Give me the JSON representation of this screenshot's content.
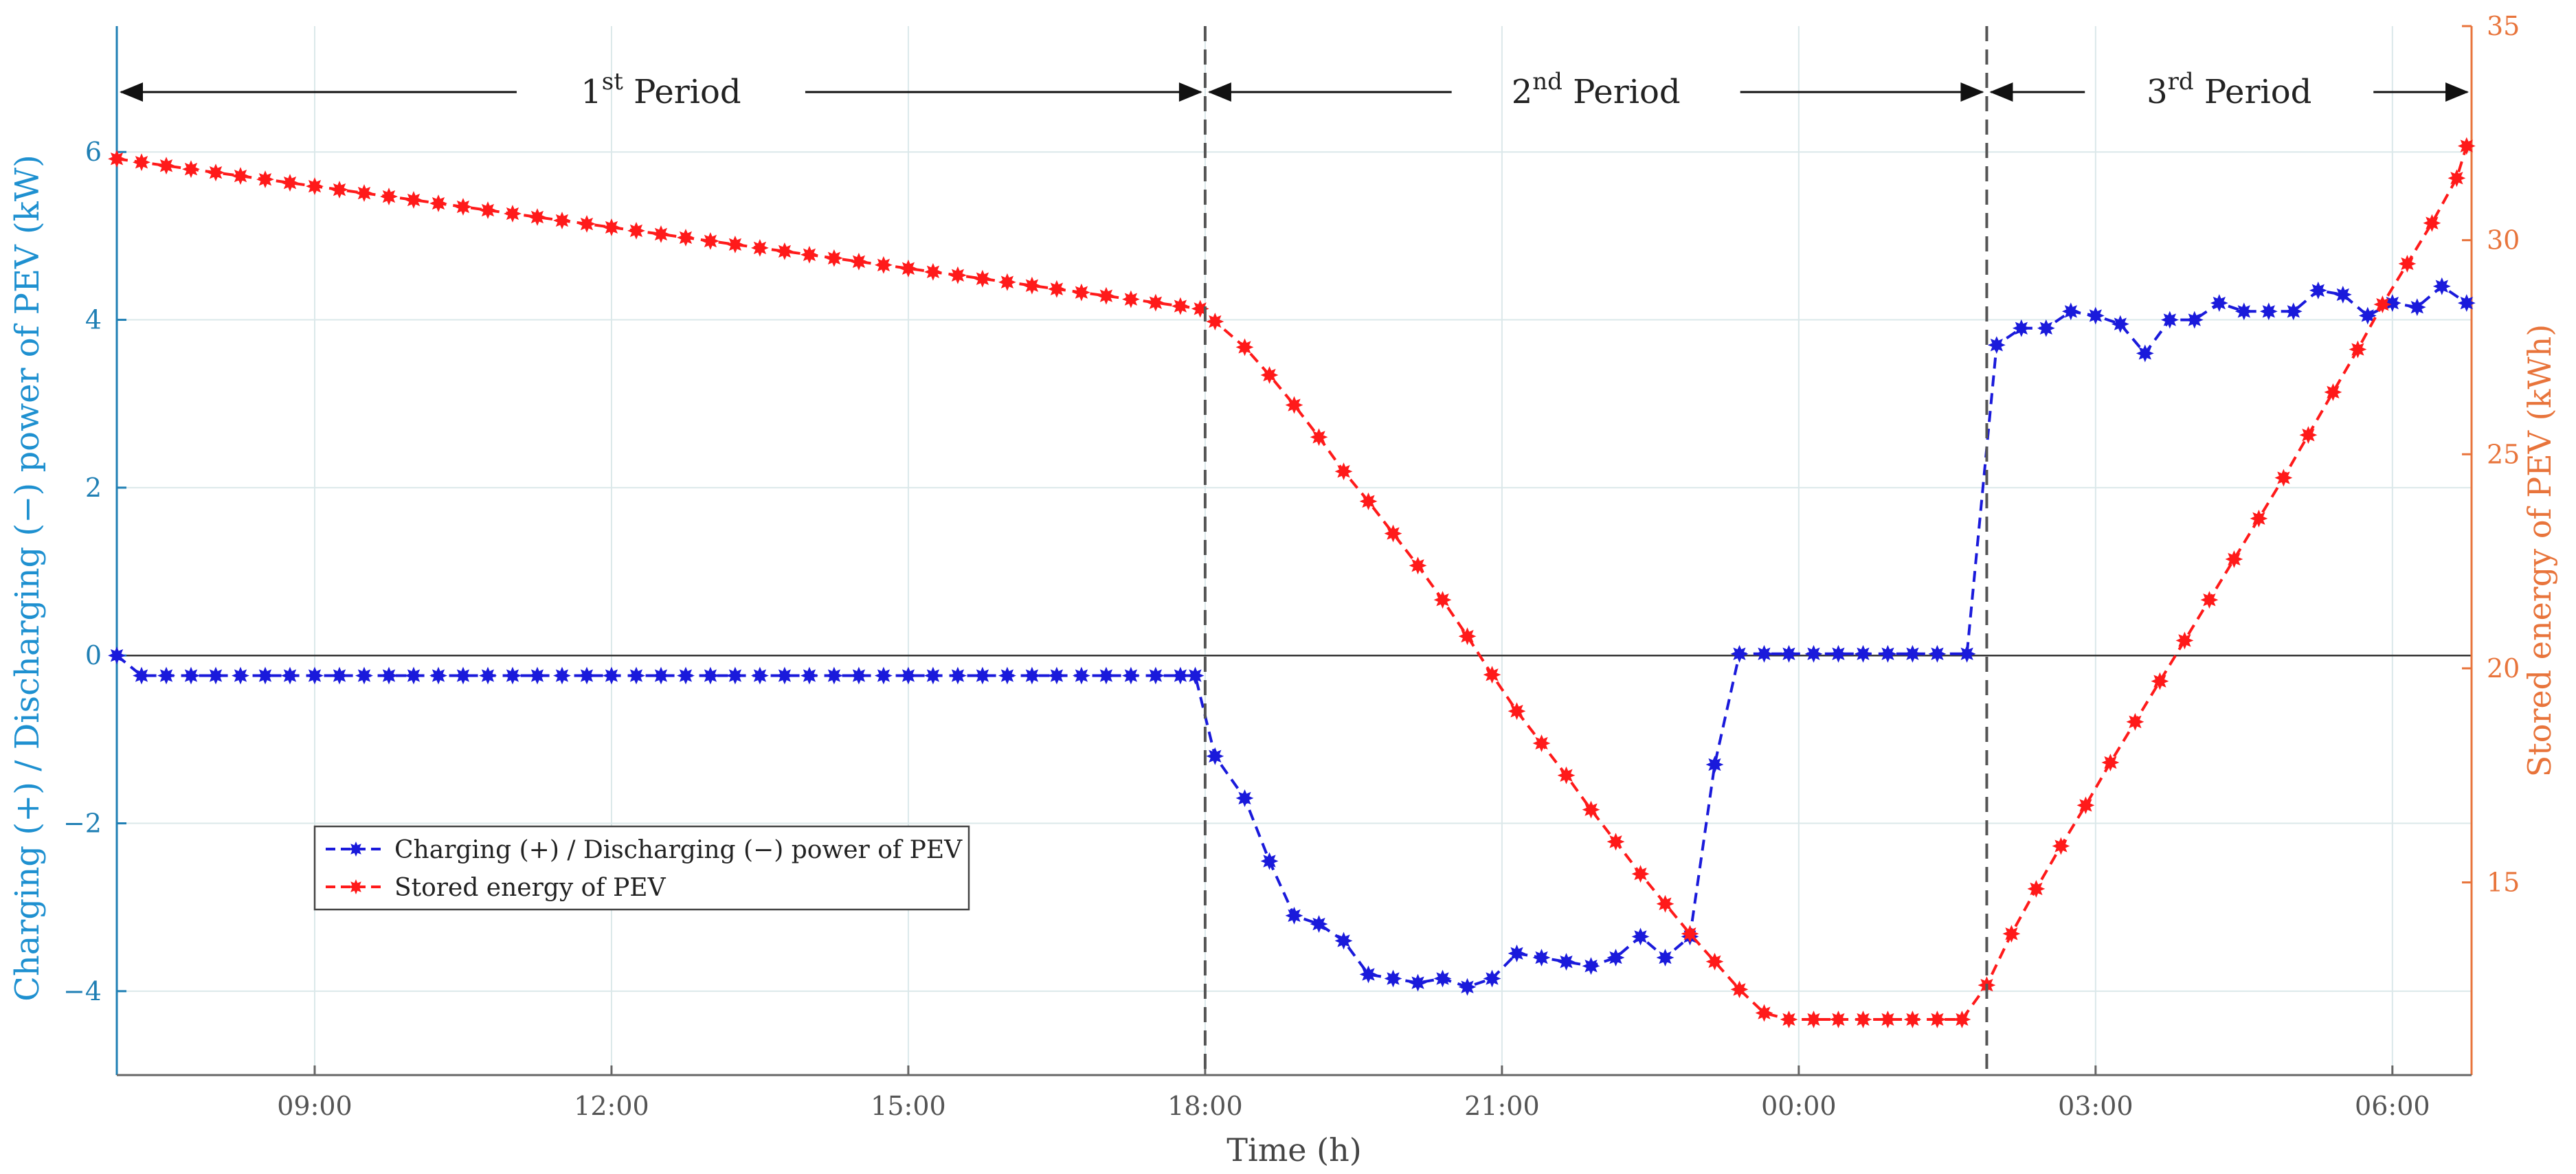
{
  "chart_data": {
    "type": "line",
    "xlabel": "Time (h)",
    "ylabel_left": "Charging (+) / Discharging (−) power of PEV (kW)",
    "ylabel_right": "Stored energy of PEV (kWh)",
    "x_range_hours": [
      7.0,
      30.8
    ],
    "x_ticks": [
      {
        "value": 9,
        "label": "09:00"
      },
      {
        "value": 12,
        "label": "12:00"
      },
      {
        "value": 15,
        "label": "15:00"
      },
      {
        "value": 18,
        "label": "18:00"
      },
      {
        "value": 21,
        "label": "21:00"
      },
      {
        "value": 24,
        "label": "00:00"
      },
      {
        "value": 27,
        "label": "03:00"
      },
      {
        "value": 30,
        "label": "06:00"
      }
    ],
    "ylim_left": [
      -5,
      7.5
    ],
    "yticks_left": [
      {
        "value": -4,
        "label": "−4"
      },
      {
        "value": -2,
        "label": "−2"
      },
      {
        "value": 0,
        "label": "0"
      },
      {
        "value": 2,
        "label": "2"
      },
      {
        "value": 4,
        "label": "4"
      },
      {
        "value": 6,
        "label": "6"
      }
    ],
    "ylim_right": [
      10.5,
      35
    ],
    "yticks_right": [
      {
        "value": 15,
        "label": "15"
      },
      {
        "value": 20,
        "label": "20"
      },
      {
        "value": 25,
        "label": "25"
      },
      {
        "value": 30,
        "label": "30"
      },
      {
        "value": 35,
        "label": "35"
      }
    ],
    "grid": true,
    "periods": [
      {
        "base": "1",
        "sup": "st",
        "text": " Period",
        "start": 7.0,
        "end": 18.0
      },
      {
        "base": "2",
        "sup": "nd",
        "text": " Period",
        "start": 18.0,
        "end": 25.9
      },
      {
        "base": "3",
        "sup": "rd",
        "text": " Period",
        "start": 25.9,
        "end": 30.8
      }
    ],
    "boundaries": [
      18.0,
      25.9
    ],
    "legend": {
      "position": "lower-left",
      "entries": [
        {
          "label": "Charging (+) / Discharging (−) power of PEV",
          "series": "power"
        },
        {
          "label": "Stored energy of PEV",
          "series": "energy"
        }
      ]
    },
    "series": [
      {
        "name": "Charging (+) / Discharging (−) power of PEV",
        "id": "power",
        "axis": "left",
        "color": "#1a1adb",
        "points": [
          [
            7.0,
            0.0
          ],
          [
            7.25,
            -0.24
          ],
          [
            7.5,
            -0.24
          ],
          [
            7.75,
            -0.24
          ],
          [
            8.0,
            -0.24
          ],
          [
            8.25,
            -0.24
          ],
          [
            8.5,
            -0.24
          ],
          [
            8.75,
            -0.24
          ],
          [
            9.0,
            -0.24
          ],
          [
            9.25,
            -0.24
          ],
          [
            9.5,
            -0.24
          ],
          [
            9.75,
            -0.24
          ],
          [
            10.0,
            -0.24
          ],
          [
            10.25,
            -0.24
          ],
          [
            10.5,
            -0.24
          ],
          [
            10.75,
            -0.24
          ],
          [
            11.0,
            -0.24
          ],
          [
            11.25,
            -0.24
          ],
          [
            11.5,
            -0.24
          ],
          [
            11.75,
            -0.24
          ],
          [
            12.0,
            -0.24
          ],
          [
            12.25,
            -0.24
          ],
          [
            12.5,
            -0.24
          ],
          [
            12.75,
            -0.24
          ],
          [
            13.0,
            -0.24
          ],
          [
            13.25,
            -0.24
          ],
          [
            13.5,
            -0.24
          ],
          [
            13.75,
            -0.24
          ],
          [
            14.0,
            -0.24
          ],
          [
            14.25,
            -0.24
          ],
          [
            14.5,
            -0.24
          ],
          [
            14.75,
            -0.24
          ],
          [
            15.0,
            -0.24
          ],
          [
            15.25,
            -0.24
          ],
          [
            15.5,
            -0.24
          ],
          [
            15.75,
            -0.24
          ],
          [
            16.0,
            -0.24
          ],
          [
            16.25,
            -0.24
          ],
          [
            16.5,
            -0.24
          ],
          [
            16.75,
            -0.24
          ],
          [
            17.0,
            -0.24
          ],
          [
            17.25,
            -0.24
          ],
          [
            17.5,
            -0.24
          ],
          [
            17.75,
            -0.24
          ],
          [
            17.9,
            -0.24
          ],
          [
            18.1,
            -1.2
          ],
          [
            18.4,
            -1.7
          ],
          [
            18.65,
            -2.45
          ],
          [
            18.9,
            -3.1
          ],
          [
            19.15,
            -3.2
          ],
          [
            19.4,
            -3.4
          ],
          [
            19.65,
            -3.8
          ],
          [
            19.9,
            -3.85
          ],
          [
            20.15,
            -3.9
          ],
          [
            20.4,
            -3.85
          ],
          [
            20.65,
            -3.95
          ],
          [
            20.9,
            -3.85
          ],
          [
            21.15,
            -3.55
          ],
          [
            21.4,
            -3.6
          ],
          [
            21.65,
            -3.65
          ],
          [
            21.9,
            -3.7
          ],
          [
            22.15,
            -3.6
          ],
          [
            22.4,
            -3.35
          ],
          [
            22.65,
            -3.6
          ],
          [
            22.9,
            -3.35
          ],
          [
            23.15,
            -1.3
          ],
          [
            23.4,
            0.02
          ],
          [
            23.65,
            0.02
          ],
          [
            23.9,
            0.02
          ],
          [
            24.15,
            0.02
          ],
          [
            24.4,
            0.02
          ],
          [
            24.65,
            0.02
          ],
          [
            24.9,
            0.02
          ],
          [
            25.15,
            0.02
          ],
          [
            25.4,
            0.02
          ],
          [
            25.7,
            0.02
          ],
          [
            26.0,
            3.7
          ],
          [
            26.25,
            3.9
          ],
          [
            26.5,
            3.9
          ],
          [
            26.75,
            4.1
          ],
          [
            27.0,
            4.05
          ],
          [
            27.25,
            3.95
          ],
          [
            27.5,
            3.6
          ],
          [
            27.75,
            4.0
          ],
          [
            28.0,
            4.0
          ],
          [
            28.25,
            4.2
          ],
          [
            28.5,
            4.1
          ],
          [
            28.75,
            4.1
          ],
          [
            29.0,
            4.1
          ],
          [
            29.25,
            4.35
          ],
          [
            29.5,
            4.3
          ],
          [
            29.75,
            4.05
          ],
          [
            30.0,
            4.2
          ],
          [
            30.25,
            4.15
          ],
          [
            30.5,
            4.4
          ],
          [
            30.75,
            4.2
          ]
        ]
      },
      {
        "name": "Stored energy of PEV",
        "id": "energy",
        "axis": "right",
        "color": "#ff1a1a",
        "points": [
          [
            7.0,
            31.9
          ],
          [
            7.25,
            31.82
          ],
          [
            7.5,
            31.74
          ],
          [
            7.75,
            31.66
          ],
          [
            8.0,
            31.58
          ],
          [
            8.25,
            31.5
          ],
          [
            8.5,
            31.42
          ],
          [
            8.75,
            31.34
          ],
          [
            9.0,
            31.26
          ],
          [
            9.25,
            31.18
          ],
          [
            9.5,
            31.1
          ],
          [
            9.75,
            31.02
          ],
          [
            10.0,
            30.94
          ],
          [
            10.25,
            30.86
          ],
          [
            10.5,
            30.78
          ],
          [
            10.75,
            30.7
          ],
          [
            11.0,
            30.62
          ],
          [
            11.25,
            30.54
          ],
          [
            11.5,
            30.46
          ],
          [
            11.75,
            30.38
          ],
          [
            12.0,
            30.3
          ],
          [
            12.25,
            30.22
          ],
          [
            12.5,
            30.14
          ],
          [
            12.75,
            30.06
          ],
          [
            13.0,
            29.98
          ],
          [
            13.25,
            29.9
          ],
          [
            13.5,
            29.82
          ],
          [
            13.75,
            29.74
          ],
          [
            14.0,
            29.66
          ],
          [
            14.25,
            29.58
          ],
          [
            14.5,
            29.5
          ],
          [
            14.75,
            29.42
          ],
          [
            15.0,
            29.34
          ],
          [
            15.25,
            29.26
          ],
          [
            15.5,
            29.18
          ],
          [
            15.75,
            29.1
          ],
          [
            16.0,
            29.02
          ],
          [
            16.25,
            28.94
          ],
          [
            16.5,
            28.86
          ],
          [
            16.75,
            28.78
          ],
          [
            17.0,
            28.7
          ],
          [
            17.25,
            28.62
          ],
          [
            17.5,
            28.54
          ],
          [
            17.75,
            28.46
          ],
          [
            17.95,
            28.4
          ],
          [
            18.1,
            28.1
          ],
          [
            18.4,
            27.5
          ],
          [
            18.65,
            26.85
          ],
          [
            18.9,
            26.15
          ],
          [
            19.15,
            25.4
          ],
          [
            19.4,
            24.6
          ],
          [
            19.65,
            23.9
          ],
          [
            19.9,
            23.15
          ],
          [
            20.15,
            22.4
          ],
          [
            20.4,
            21.6
          ],
          [
            20.65,
            20.75
          ],
          [
            20.9,
            19.85
          ],
          [
            21.15,
            19.0
          ],
          [
            21.4,
            18.25
          ],
          [
            21.65,
            17.5
          ],
          [
            21.9,
            16.7
          ],
          [
            22.15,
            15.95
          ],
          [
            22.4,
            15.2
          ],
          [
            22.65,
            14.5
          ],
          [
            22.9,
            13.8
          ],
          [
            23.15,
            13.15
          ],
          [
            23.4,
            12.5
          ],
          [
            23.65,
            11.95
          ],
          [
            23.9,
            11.8
          ],
          [
            24.15,
            11.8
          ],
          [
            24.4,
            11.8
          ],
          [
            24.65,
            11.8
          ],
          [
            24.9,
            11.8
          ],
          [
            25.15,
            11.8
          ],
          [
            25.4,
            11.8
          ],
          [
            25.65,
            11.8
          ],
          [
            25.9,
            12.6
          ],
          [
            26.15,
            13.8
          ],
          [
            26.4,
            14.85
          ],
          [
            26.65,
            15.85
          ],
          [
            26.9,
            16.8
          ],
          [
            27.15,
            17.8
          ],
          [
            27.4,
            18.75
          ],
          [
            27.65,
            19.7
          ],
          [
            27.9,
            20.65
          ],
          [
            28.15,
            21.6
          ],
          [
            28.4,
            22.55
          ],
          [
            28.65,
            23.5
          ],
          [
            28.9,
            24.45
          ],
          [
            29.15,
            25.45
          ],
          [
            29.4,
            26.45
          ],
          [
            29.65,
            27.45
          ],
          [
            29.9,
            28.5
          ],
          [
            30.15,
            29.45
          ],
          [
            30.4,
            30.4
          ],
          [
            30.65,
            31.45
          ],
          [
            30.75,
            32.2
          ]
        ]
      }
    ]
  }
}
